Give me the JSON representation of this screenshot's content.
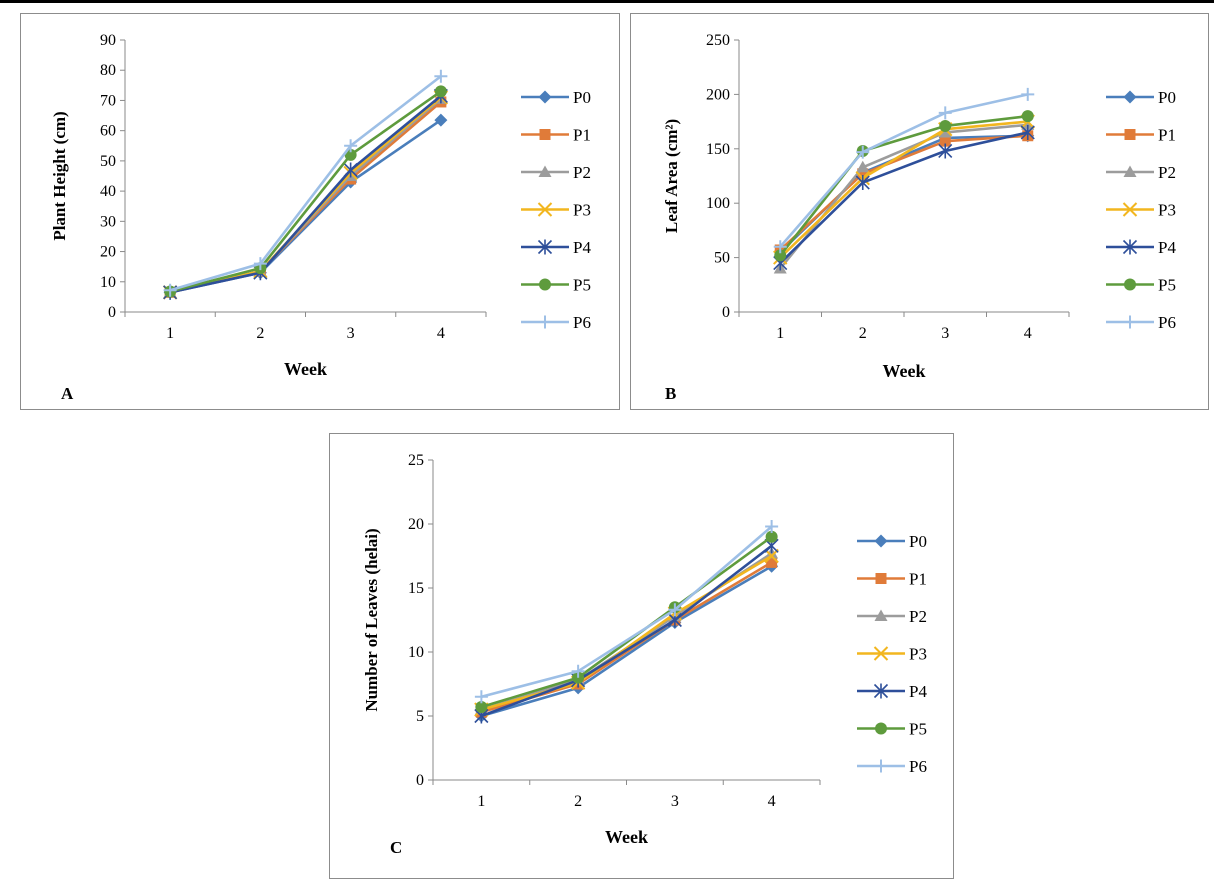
{
  "chart_data": [
    {
      "type": "line",
      "panel_label": "A",
      "title": "",
      "xlabel": "Week",
      "ylabel": "Plant Height  (cm)",
      "x": [
        1,
        2,
        3,
        4
      ],
      "x_tick_labels": [
        "1",
        "2",
        "3",
        "4"
      ],
      "ylim": [
        0,
        90
      ],
      "y_ticks": [
        0,
        10,
        20,
        30,
        40,
        50,
        60,
        70,
        80,
        90
      ],
      "grid": false,
      "legend_position": "right",
      "series": [
        {
          "name": "P0",
          "values": [
            6.5,
            13,
            43,
            63.5
          ]
        },
        {
          "name": "P1",
          "values": [
            6.5,
            13.5,
            44,
            69.5
          ]
        },
        {
          "name": "P2",
          "values": [
            6.5,
            13.5,
            45,
            70.5
          ]
        },
        {
          "name": "P3",
          "values": [
            6.5,
            13.5,
            46,
            71
          ]
        },
        {
          "name": "P4",
          "values": [
            6.5,
            13,
            47,
            71.5
          ]
        },
        {
          "name": "P5",
          "values": [
            6.8,
            14.5,
            52,
            73
          ]
        },
        {
          "name": "P6",
          "values": [
            7.2,
            16,
            55,
            78
          ]
        }
      ]
    },
    {
      "type": "line",
      "panel_label": "B",
      "title": "",
      "xlabel": "Week",
      "ylabel": "Leaf Area (cm²)",
      "x": [
        1,
        2,
        3,
        4
      ],
      "x_tick_labels": [
        "1",
        "2",
        "3",
        "4"
      ],
      "ylim": [
        0,
        250
      ],
      "y_ticks": [
        0,
        50,
        100,
        150,
        200,
        250
      ],
      "grid": false,
      "legend_position": "right",
      "series": [
        {
          "name": "P0",
          "values": [
            55,
            128,
            160,
            162
          ]
        },
        {
          "name": "P1",
          "values": [
            57,
            127,
            157,
            162
          ]
        },
        {
          "name": "P2",
          "values": [
            40,
            133,
            165,
            172
          ]
        },
        {
          "name": "P3",
          "values": [
            50,
            123,
            168,
            175
          ]
        },
        {
          "name": "P4",
          "values": [
            45,
            119,
            148,
            165
          ]
        },
        {
          "name": "P5",
          "values": [
            52,
            148,
            171,
            180
          ]
        },
        {
          "name": "P6",
          "values": [
            60,
            147,
            183,
            200
          ]
        }
      ]
    },
    {
      "type": "line",
      "panel_label": "C",
      "title": "",
      "xlabel": "Week",
      "ylabel": "Number of Leaves (helai)",
      "x": [
        1,
        2,
        3,
        4
      ],
      "x_tick_labels": [
        "1",
        "2",
        "3",
        "4"
      ],
      "ylim": [
        0,
        25
      ],
      "y_ticks": [
        0,
        5,
        10,
        15,
        20,
        25
      ],
      "grid": false,
      "legend_position": "right",
      "series": [
        {
          "name": "P0",
          "values": [
            5,
            7.2,
            12.3,
            16.7
          ]
        },
        {
          "name": "P1",
          "values": [
            5.3,
            7.5,
            12.5,
            17
          ]
        },
        {
          "name": "P2",
          "values": [
            5.5,
            7.8,
            12.8,
            17.7
          ]
        },
        {
          "name": "P3",
          "values": [
            5.5,
            7.6,
            13,
            17.5
          ]
        },
        {
          "name": "P4",
          "values": [
            5,
            7.8,
            12.5,
            18.3
          ]
        },
        {
          "name": "P5",
          "values": [
            5.7,
            8,
            13.5,
            19
          ]
        },
        {
          "name": "P6",
          "values": [
            6.5,
            8.5,
            13.3,
            19.8
          ]
        }
      ]
    }
  ],
  "series_styles": [
    {
      "color": "#4a7ebb",
      "marker": "diamond"
    },
    {
      "color": "#e07b39",
      "marker": "square"
    },
    {
      "color": "#9c9c9c",
      "marker": "triangle"
    },
    {
      "color": "#f2b61f",
      "marker": "x"
    },
    {
      "color": "#2e4f9a",
      "marker": "star"
    },
    {
      "color": "#5e9b3d",
      "marker": "circle"
    },
    {
      "color": "#9dbfe6",
      "marker": "plus"
    }
  ]
}
